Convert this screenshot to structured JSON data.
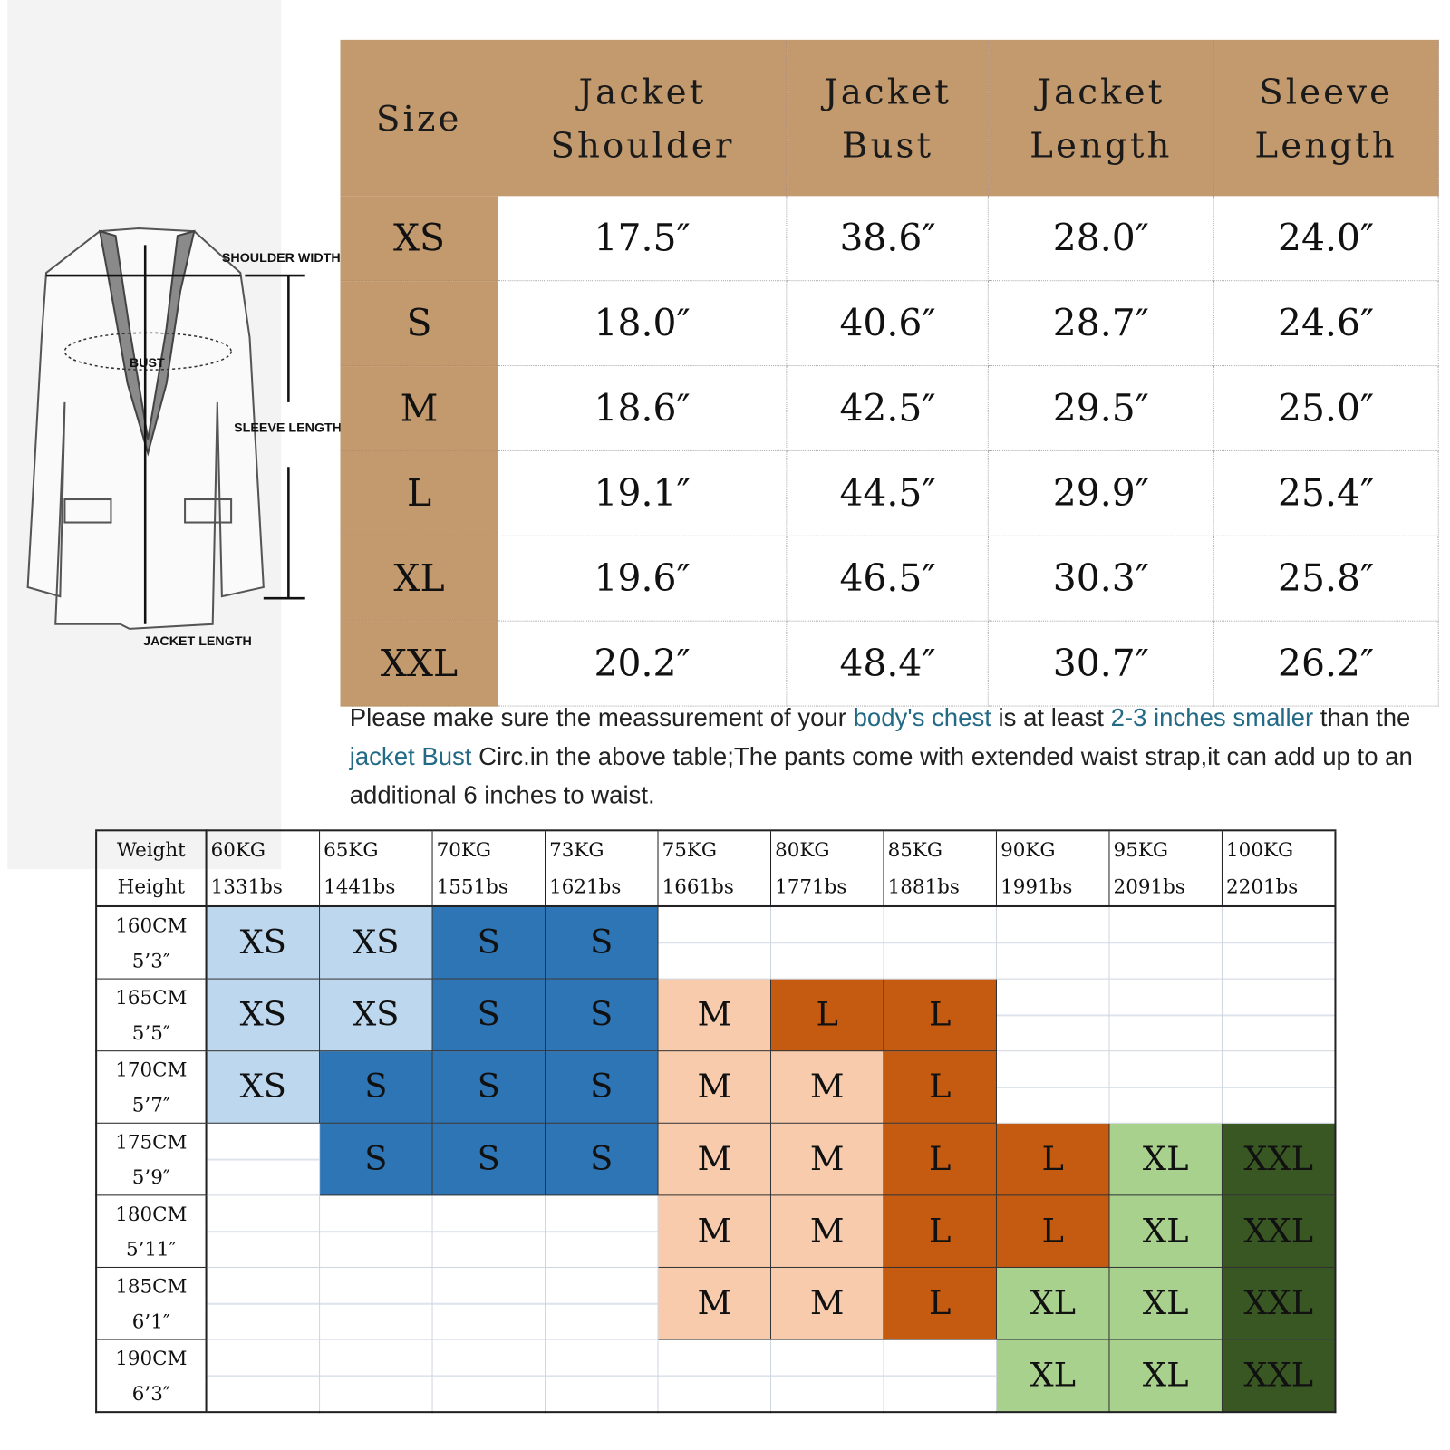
{
  "diagram": {
    "labels": {
      "shoulder": "SHOULDER WIDTH",
      "bust": "BUST",
      "sleeve": "SLEEVE LENGTH",
      "length": "JACKET LENGTH"
    }
  },
  "spec_table": {
    "headers": [
      [
        "Size"
      ],
      [
        "Jacket",
        "Shoulder"
      ],
      [
        "Jacket",
        "Bust"
      ],
      [
        "Jacket",
        "Length"
      ],
      [
        "Sleeve",
        "Length"
      ]
    ],
    "rows": [
      [
        "XS",
        "17.5″",
        "38.6″",
        "28.0″",
        "24.0″"
      ],
      [
        "S",
        "18.0″",
        "40.6″",
        "28.7″",
        "24.6″"
      ],
      [
        "M",
        "18.6″",
        "42.5″",
        "29.5″",
        "25.0″"
      ],
      [
        "L",
        "19.1″",
        "44.5″",
        "29.9″",
        "25.4″"
      ],
      [
        "XL",
        "19.6″",
        "46.5″",
        "30.3″",
        "25.8″"
      ],
      [
        "XXL",
        "20.2″",
        "48.4″",
        "30.7″",
        "26.2″"
      ]
    ]
  },
  "note": {
    "p1": "Please make sure the meassurement of your ",
    "h1": "body's chest",
    "p2": " is at least ",
    "h2": "2-3 inches smaller",
    "p3": " than the ",
    "h3": "jacket Bust",
    "p4": " Circ.in the above table;The pants come with extended waist strap,it can add up to an additional 6 inches to waist."
  },
  "size_grid": {
    "corner": [
      "Weight",
      "Height"
    ],
    "weights": [
      [
        "60KG",
        "1331bs"
      ],
      [
        "65KG",
        "1441bs"
      ],
      [
        "70KG",
        "1551bs"
      ],
      [
        "73KG",
        "1621bs"
      ],
      [
        "75KG",
        "1661bs"
      ],
      [
        "80KG",
        "1771bs"
      ],
      [
        "85KG",
        "1881bs"
      ],
      [
        "90KG",
        "1991bs"
      ],
      [
        "95KG",
        "2091bs"
      ],
      [
        "100KG",
        "2201bs"
      ]
    ],
    "heights": [
      [
        "160CM",
        "5’3″"
      ],
      [
        "165CM",
        "5’5″"
      ],
      [
        "170CM",
        "5’7″"
      ],
      [
        "175CM",
        "5’9″"
      ],
      [
        "180CM",
        "5’11″"
      ],
      [
        "185CM",
        "6’1″"
      ],
      [
        "190CM",
        "6’3″"
      ]
    ],
    "cells": [
      [
        "XS",
        "XS",
        "S",
        "S",
        "",
        "",
        "",
        "",
        "",
        ""
      ],
      [
        "XS",
        "XS",
        "S",
        "S",
        "M",
        "L",
        "L",
        "",
        "",
        ""
      ],
      [
        "XS",
        "S",
        "S",
        "S",
        "M",
        "M",
        "L",
        "",
        "",
        ""
      ],
      [
        "",
        "S",
        "S",
        "S",
        "M",
        "M",
        "L",
        "L",
        "XL",
        "XXL"
      ],
      [
        "",
        "",
        "",
        "",
        "M",
        "M",
        "L",
        "L",
        "XL",
        "XXL"
      ],
      [
        "",
        "",
        "",
        "",
        "M",
        "M",
        "L",
        "XL",
        "XL",
        "XXL"
      ],
      [
        "",
        "",
        "",
        "",
        "",
        "",
        "",
        "XL",
        "XL",
        "XXL"
      ]
    ],
    "colors": {
      "XS": "#bdd7ee",
      "S": "#2e75b6",
      "M": "#f8cbad",
      "L": "#c55a11",
      "XL": "#a9d18e",
      "XXL": "#385723",
      "header": "#c39a6e"
    }
  }
}
